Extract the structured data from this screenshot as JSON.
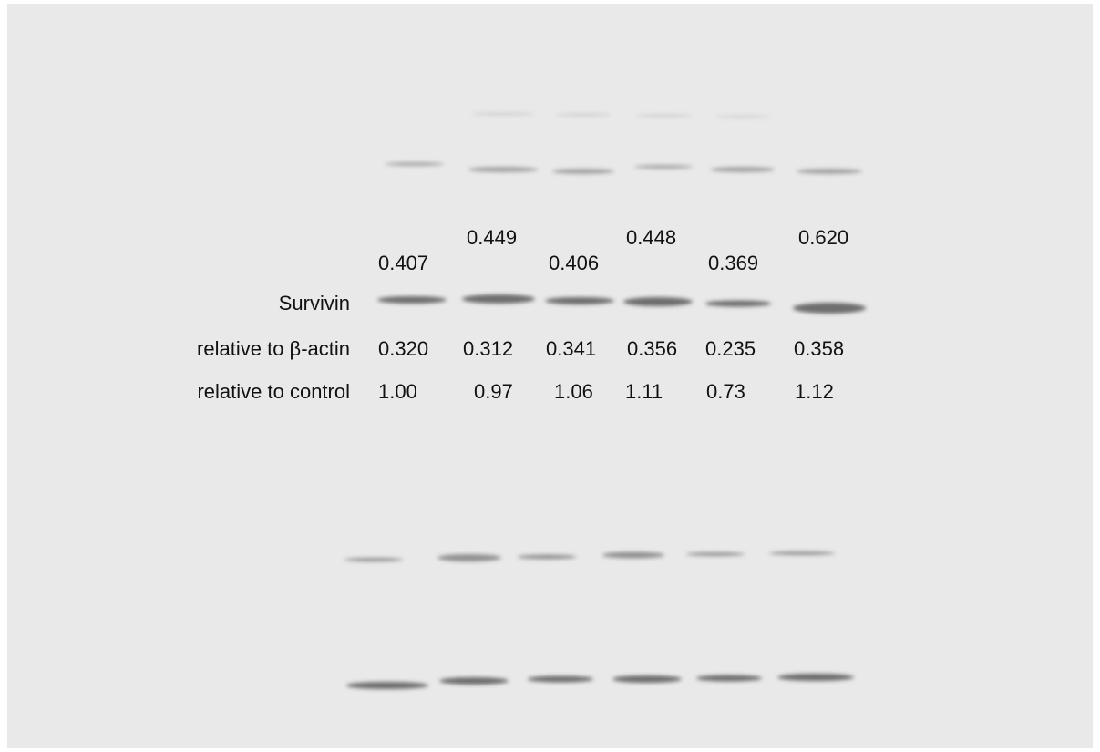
{
  "densitometry": [
    "0.407",
    "0.449",
    "0.406",
    "0.448",
    "0.369",
    "0.620"
  ],
  "labels": {
    "protein": "Survivin",
    "relative_actin": "relative to β-actin",
    "relative_control": "relative to control"
  },
  "relative_to_actin": [
    "0.320",
    "0.312",
    "0.341",
    "0.356",
    "0.235",
    "0.358"
  ],
  "relative_to_control": [
    "1.00",
    "0.97",
    "1.06",
    "1.11",
    "0.73",
    "1.12"
  ]
}
